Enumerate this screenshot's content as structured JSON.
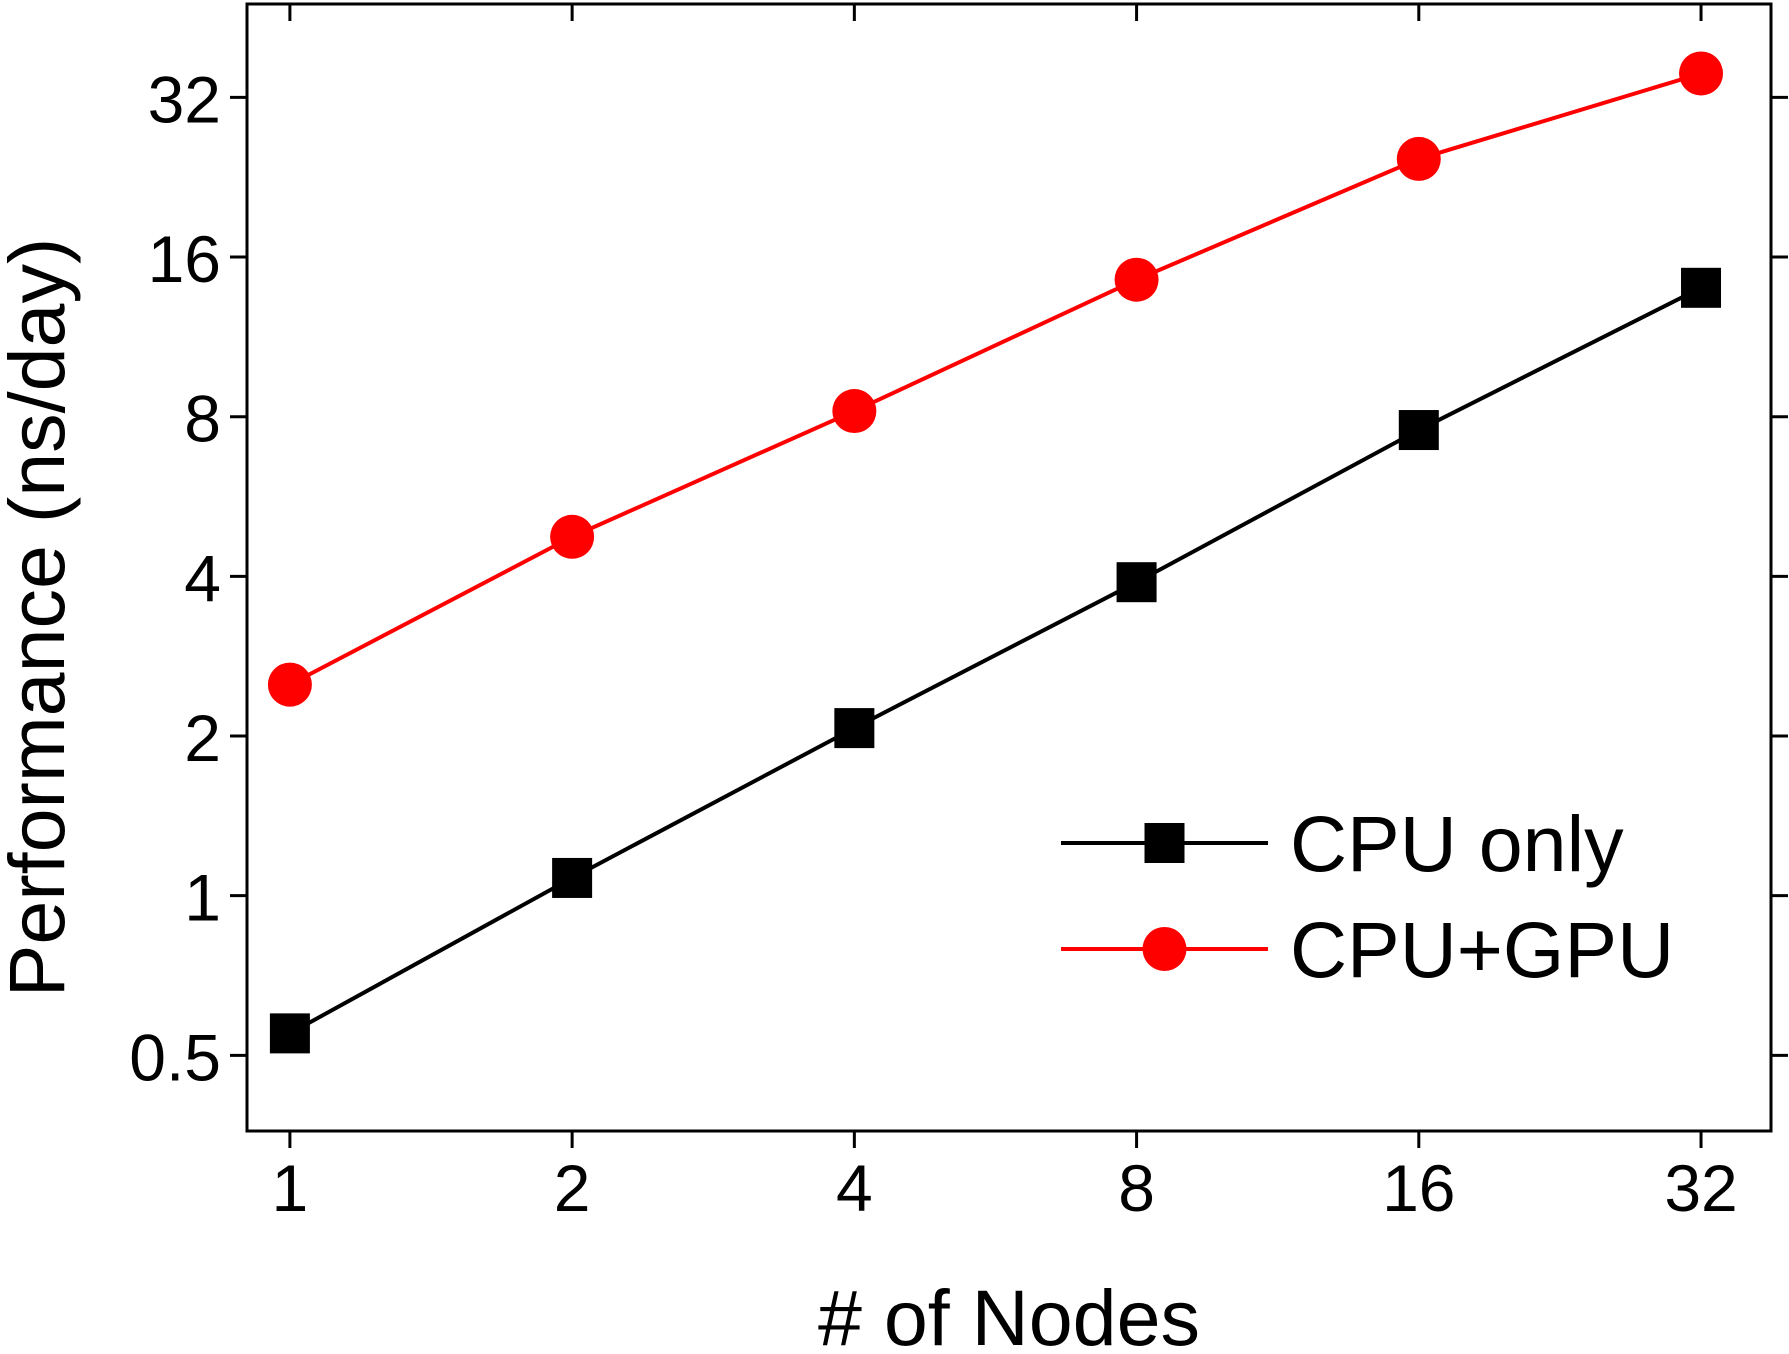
{
  "chart_data": {
    "type": "line",
    "title": "",
    "xlabel": "# of Nodes",
    "ylabel": "Performance (ns/day)",
    "x_scale": "log2",
    "y_scale": "log2",
    "x_ticks": [
      1,
      2,
      4,
      8,
      16,
      32
    ],
    "x_tick_labels": [
      "1",
      "2",
      "4",
      "8",
      "16",
      "32"
    ],
    "y_ticks": [
      0.5,
      1,
      2,
      4,
      8,
      16,
      32
    ],
    "y_tick_labels": [
      "0.5",
      "1",
      "2",
      "4",
      "8",
      "16",
      "32"
    ],
    "xlim": [
      0.9,
      38
    ],
    "ylim": [
      0.36,
      48
    ],
    "grid": false,
    "legend_position": "bottom-right",
    "series": [
      {
        "name": "CPU only",
        "color": "#000000",
        "marker": "square",
        "x": [
          1,
          2,
          4,
          8,
          16,
          32
        ],
        "y": [
          0.55,
          1.08,
          2.07,
          3.9,
          7.55,
          14.0
        ]
      },
      {
        "name": "CPU+GPU",
        "color": "#ff0000",
        "marker": "circle",
        "x": [
          1,
          2,
          4,
          8,
          16,
          32
        ],
        "y": [
          2.5,
          4.75,
          8.2,
          14.5,
          24.5,
          35.5
        ]
      }
    ]
  }
}
